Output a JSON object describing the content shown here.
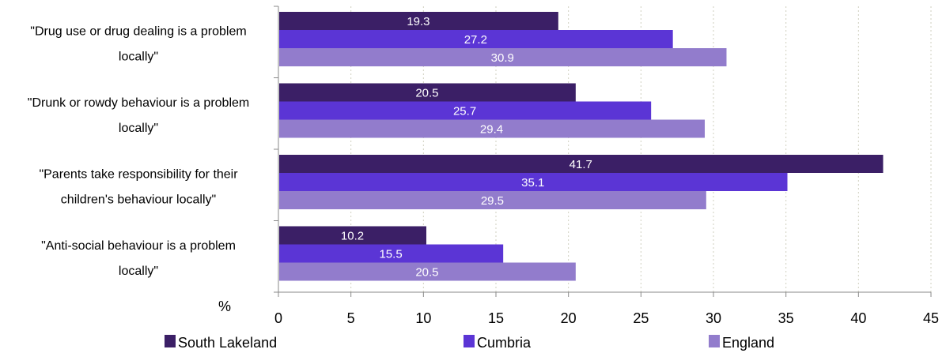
{
  "chart_data": {
    "type": "bar",
    "orientation": "horizontal",
    "categories": [
      [
        "\"Drug use or drug dealing is a problem",
        "locally\""
      ],
      [
        "\"Drunk or rowdy behaviour is a problem",
        "locally\""
      ],
      [
        "\"Parents take responsibility for their",
        "children's behaviour locally\""
      ],
      [
        "\"Anti-social behaviour is a problem",
        "locally\""
      ]
    ],
    "series": [
      {
        "name": "South Lakeland",
        "color": "#3b1f66",
        "values": [
          19.3,
          20.5,
          41.7,
          10.2
        ]
      },
      {
        "name": "Cumbria",
        "color": "#5b35d5",
        "values": [
          27.2,
          25.7,
          35.1,
          15.5
        ]
      },
      {
        "name": "England",
        "color": "#927ccc",
        "values": [
          30.9,
          29.4,
          29.5,
          20.5
        ]
      }
    ],
    "xlim": [
      0,
      45
    ],
    "xticks": [
      0,
      5,
      10,
      15,
      20,
      25,
      30,
      35,
      40,
      45
    ],
    "xlabel": "%",
    "grid": "vertical-dotted",
    "legend_position": "bottom"
  }
}
